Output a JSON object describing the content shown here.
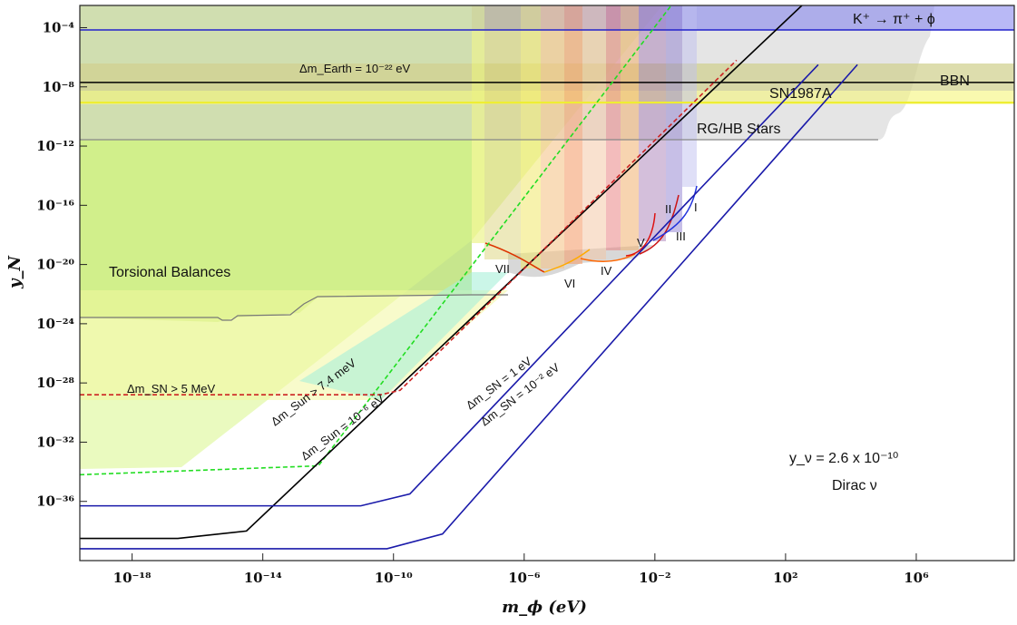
{
  "chart_data": {
    "type": "line",
    "xlabel": "m_ϕ (eV)",
    "ylabel": "y_N",
    "x_scale": "log",
    "y_scale": "log",
    "x_ticks": [
      "10⁻¹⁸",
      "10⁻¹⁴",
      "10⁻¹⁰",
      "10⁻⁶",
      "10⁻²",
      "10²",
      "10⁶"
    ],
    "y_ticks": [
      "10⁻⁴",
      "10⁻⁸",
      "10⁻¹²",
      "10⁻¹⁶",
      "10⁻²⁰",
      "10⁻²⁴",
      "10⁻²⁸",
      "10⁻³²",
      "10⁻³⁶"
    ],
    "xlim_log10": [
      -19.6,
      9
    ],
    "ylim_log10": [
      -40,
      -2.5
    ],
    "annotation_params": "y_ν = 2.6 x 10⁻¹⁰",
    "annotation_type": "Dirac ν",
    "regions": [
      {
        "label": "Torsional Balances",
        "color": "#a8d86a"
      },
      {
        "label": "RG/HB Stars",
        "color": "#c8c8c8"
      },
      {
        "label": "SN1987A",
        "color": "#f2f27a"
      },
      {
        "label": "BBN",
        "color": "#b0b0b0"
      },
      {
        "label": "K⁺ → π⁺ + ϕ",
        "color": "#8c8cf0"
      }
    ],
    "series": [
      {
        "name": "Δm_Earth = 10⁻²² eV",
        "color": "#000000",
        "x_log10": [
          -19.6,
          7.0,
          9.0
        ],
        "y_log10": [
          -7.7,
          -7.7,
          -7.7
        ]
      },
      {
        "name": "Δm_Sun > 7.4 meV",
        "color": "#22dd22",
        "x_log10": [
          -19.6,
          -12.3,
          -1.5
        ],
        "y_log10": [
          -34.2,
          -33.6,
          -2.5
        ]
      },
      {
        "name": "Δm_Sun = 10⁻⁶ eV",
        "color": "#000000",
        "x_log10": [
          -19.6,
          -16.6,
          -14.5,
          2.5
        ],
        "y_log10": [
          -38.5,
          -38.5,
          -38.0,
          -2.5
        ]
      },
      {
        "name": "Δm_SN > 5 MeV",
        "color": "#cc2222",
        "x_log10": [
          -19.6,
          -10.4,
          -9.8,
          0.5
        ],
        "y_log10": [
          -28.8,
          -28.8,
          -28.5,
          -6.2
        ]
      },
      {
        "name": "Δm_SN = 1 eV",
        "color": "#1a1aaa",
        "x_log10": [
          -19.6,
          -11.0,
          -9.5,
          3.0
        ],
        "y_log10": [
          -36.3,
          -36.3,
          -35.5,
          -6.5
        ]
      },
      {
        "name": "Δm_SN = 10⁻² eV",
        "color": "#1a1aaa",
        "x_log10": [
          -19.6,
          -10.2,
          -8.5,
          4.2
        ],
        "y_log10": [
          -39.2,
          -39.2,
          -38.2,
          -6.5
        ]
      }
    ],
    "roman_labels": [
      "I",
      "II",
      "III",
      "IV",
      "V",
      "VI",
      "VII"
    ]
  }
}
